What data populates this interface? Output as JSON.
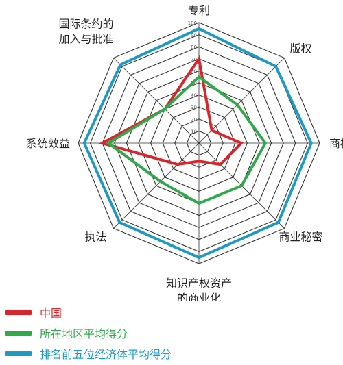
{
  "chart_data": {
    "type": "radar",
    "axes": [
      "专利",
      "版权",
      "商标",
      "商业秘密",
      "知识产权资产\n的商业化",
      "执法",
      "系统效益",
      "国际条约的\n加入与批准"
    ],
    "ticks": [
      10,
      20,
      30,
      40,
      50,
      60,
      70,
      80,
      90,
      100
    ],
    "range": [
      0,
      100
    ],
    "grid": true,
    "legend_position": "bottom-left",
    "series": [
      {
        "name": "中国",
        "color": "#d9262c",
        "values": [
          70,
          15,
          35,
          25,
          15,
          25,
          80,
          40
        ]
      },
      {
        "name": "所在地区平均得分",
        "color": "#2eaa4a",
        "values": [
          55,
          45,
          55,
          50,
          50,
          45,
          75,
          40
        ]
      },
      {
        "name": "排名前五位经济体平均得分",
        "color": "#1c9ac4",
        "values": [
          95,
          90,
          93,
          93,
          95,
          93,
          95,
          92
        ]
      }
    ]
  }
}
